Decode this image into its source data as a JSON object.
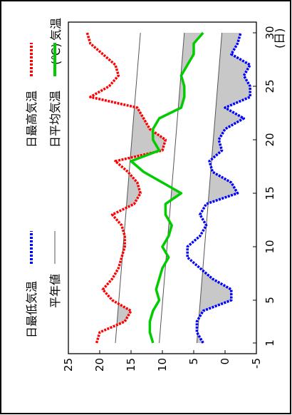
{
  "chart_data": {
    "type": "line",
    "title": "気温",
    "unit": "(℃)",
    "x_unit": "(日)",
    "x": [
      1,
      2,
      3,
      4,
      5,
      6,
      7,
      8,
      9,
      10,
      11,
      12,
      13,
      14,
      15,
      16,
      17,
      18,
      19,
      20,
      21,
      22,
      23,
      24,
      25,
      26,
      27,
      28,
      29,
      30
    ],
    "xlim": [
      0,
      31
    ],
    "ylim": [
      -5,
      25
    ],
    "x_ticks": [
      "1",
      "5",
      "10",
      "15",
      "20",
      "25",
      "30"
    ],
    "y_ticks": [
      "-5",
      "0",
      "5",
      "10",
      "15",
      "20",
      "25"
    ],
    "x_tick_values": [
      1,
      5,
      10,
      15,
      20,
      25,
      30
    ],
    "y_tick_values": [
      -5,
      0,
      5,
      10,
      15,
      20,
      25
    ],
    "series": [
      {
        "name": "日最高気温",
        "style": "dotted",
        "color": "#ff0000",
        "values": [
          20.5,
          20,
          16,
          15,
          18,
          19.5,
          18,
          17,
          16.5,
          16,
          16,
          16.5,
          18,
          14.5,
          13.5,
          14,
          15.5,
          17.5,
          10,
          9.5,
          12,
          13,
          14,
          21.5,
          18.5,
          17,
          17.5,
          19.5,
          21.5,
          22
        ]
      },
      {
        "name": "日平均気温",
        "style": "solid",
        "color": "#00cc00",
        "values": [
          11.5,
          12,
          12,
          11.5,
          10.5,
          11,
          10.5,
          10,
          9,
          10,
          9,
          8.5,
          9.5,
          9.5,
          7,
          10,
          13,
          15,
          10.5,
          11.5,
          11.5,
          10.5,
          7,
          6.5,
          6.5,
          7,
          6,
          5,
          5,
          3.5
        ]
      },
      {
        "name": "日最低気温",
        "style": "dotted",
        "color": "#0000ff",
        "values": [
          3.5,
          4.5,
          4.5,
          3.5,
          -1,
          -1,
          2,
          4,
          6,
          6,
          4,
          3,
          4,
          3,
          -2,
          -1,
          2,
          2.5,
          0.5,
          1,
          0,
          -3,
          0,
          -4,
          -4,
          -3,
          -4,
          -1,
          -2,
          -2.5
        ]
      },
      {
        "name": "平年値",
        "style": "thin",
        "color": "#555555",
        "kind": "normals",
        "lines": [
          {
            "values": [
              17.5,
              13.5
            ]
          },
          {
            "values": [
              10.5,
              6.5
            ]
          },
          {
            "values": [
              4.5,
              0.5
            ]
          }
        ]
      }
    ],
    "legend": [
      {
        "label": "日最高気温",
        "style": "dotted",
        "color": "#ff0000"
      },
      {
        "label": "日最低気温",
        "style": "dotted",
        "color": "#0000ff"
      },
      {
        "label": "日平均気温",
        "style": "solid",
        "color": "#00cc00"
      },
      {
        "label": "平年値",
        "style": "thin",
        "color": "#555555"
      }
    ],
    "deviation_fill_color": "#c8c8c8",
    "grid": false,
    "orientation": "rotated 90° counter-clockwise"
  }
}
